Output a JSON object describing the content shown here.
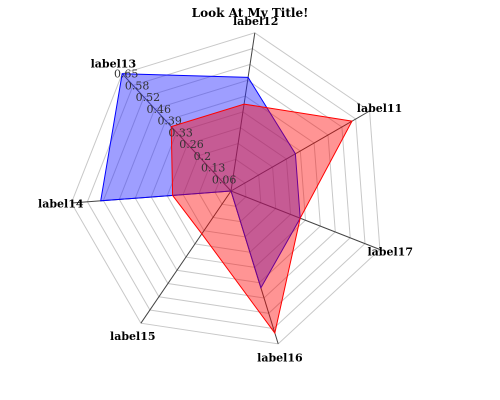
{
  "chart_data": {
    "type": "radar",
    "title": "Look At My Title!",
    "axes": [
      "label11",
      "label12",
      "label13",
      "label14",
      "label15",
      "label16",
      "label17"
    ],
    "ticks": [
      "0.06",
      "0.13",
      "0.2",
      "0.26",
      "0.33",
      "0.39",
      "0.46",
      "0.52",
      "0.58",
      "0.65"
    ],
    "rmax": 0.71,
    "grid": true,
    "series": [
      {
        "values": [
          0.33,
          0.51,
          0.71,
          0.58,
          0.0,
          0.45,
          0.33
        ],
        "color": "#0000ff",
        "fill": "rgba(40,40,255,0.45)"
      },
      {
        "values": [
          0.62,
          0.39,
          0.39,
          0.26,
          0.23,
          0.66,
          0.33
        ],
        "color": "#ff0000",
        "fill": "rgba(255,0,0,0.42)"
      }
    ]
  }
}
